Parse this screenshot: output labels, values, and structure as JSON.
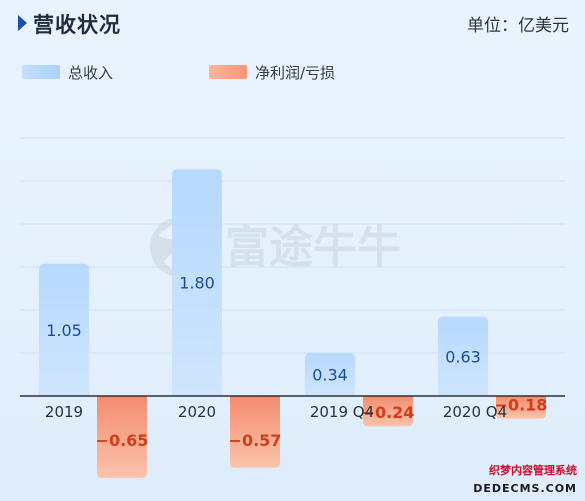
{
  "header": {
    "title": "营收状况",
    "unit": "单位：亿美元"
  },
  "legend": [
    {
      "label": "总收入",
      "color": "#b6d8fd"
    },
    {
      "label": "净利润/亏损",
      "color": "#f9a98e"
    }
  ],
  "watermark": {
    "text": "富途牛牛"
  },
  "footer_watermark": {
    "line1": "织梦内容管理系统",
    "line2": "DEDECMS.COM"
  },
  "colors": {
    "revenue_top": "#b6d9fe",
    "revenue_bottom": "#cfe5fd",
    "revenue_label": "#1b4e91",
    "profit_top": "#f48c6d",
    "profit_bottom": "#fbc3ac",
    "profit_label": "#d23d1c",
    "axis": "#2b3139",
    "grid": "#d0e2f4"
  },
  "chart_data": {
    "type": "bar",
    "categories": [
      "2019",
      "2020",
      "2019 Q4",
      "2020 Q4"
    ],
    "series": [
      {
        "name": "总收入",
        "values": [
          1.05,
          1.8,
          0.34,
          0.63
        ],
        "labels": [
          "1.05",
          "1.80",
          "0.34",
          "0.63"
        ]
      },
      {
        "name": "净利润/亏损",
        "values": [
          -0.65,
          -0.57,
          -0.24,
          -0.18
        ],
        "labels": [
          "−0.65",
          "−0.57",
          "−0.24",
          "−0.18"
        ]
      }
    ],
    "ylim": [
      -0.85,
      2.35
    ],
    "grid": true,
    "legend_position": "top-left"
  }
}
